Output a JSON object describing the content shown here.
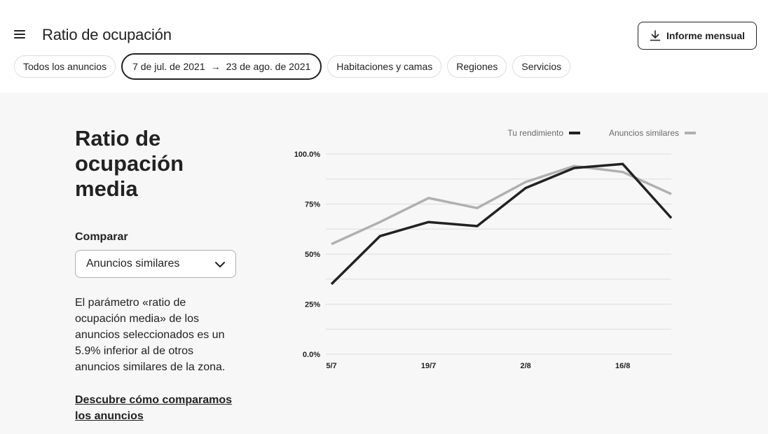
{
  "header": {
    "menu_icon": "hamburger-menu-icon",
    "title": "Ratio de ocupación",
    "report_button_label": "Informe mensual",
    "report_icon": "download-icon"
  },
  "filters": {
    "all_listings": "Todos los anuncios",
    "date_start": "7 de jul. de 2021",
    "date_arrow": "→",
    "date_end": "23 de ago. de 2021",
    "rooms": "Habitaciones y camas",
    "regions": "Regiones",
    "services": "Servicios"
  },
  "sidebar": {
    "title": "Ratio de ocupación media",
    "compare_label": "Comparar",
    "compare_selected": "Anuncios similares",
    "description": "El parámetro «ratio de ocupación media» de los anuncios seleccionados es un 5.9% inferior al de otros anuncios similares de la zona.",
    "link": "Descubre cómo comparamos los anuncios"
  },
  "colors": {
    "primary_line": "#222222",
    "comparison_line": "#b0b0b0",
    "grid": "#dddddd",
    "background": "#f7f7f7"
  },
  "chart_data": {
    "type": "line",
    "x": [
      "5/7",
      "12/7",
      "19/7",
      "26/7",
      "2/8",
      "9/8",
      "16/8",
      "23/8"
    ],
    "x_tick_labels": [
      "5/7",
      "19/7",
      "2/8",
      "16/8"
    ],
    "y_tick_labels": [
      "100.0%",
      "75%",
      "50%",
      "25%",
      "0.0%"
    ],
    "ylim": [
      0,
      100
    ],
    "grid": true,
    "legend_position": "top-right",
    "series": [
      {
        "name": "Tu rendimiento",
        "color": "#222222",
        "values": [
          35,
          59,
          66,
          64,
          83,
          93,
          95,
          68
        ]
      },
      {
        "name": "Anuncios similares",
        "color": "#b0b0b0",
        "values": [
          55,
          66,
          78,
          73,
          86,
          94,
          91,
          80
        ]
      }
    ]
  }
}
